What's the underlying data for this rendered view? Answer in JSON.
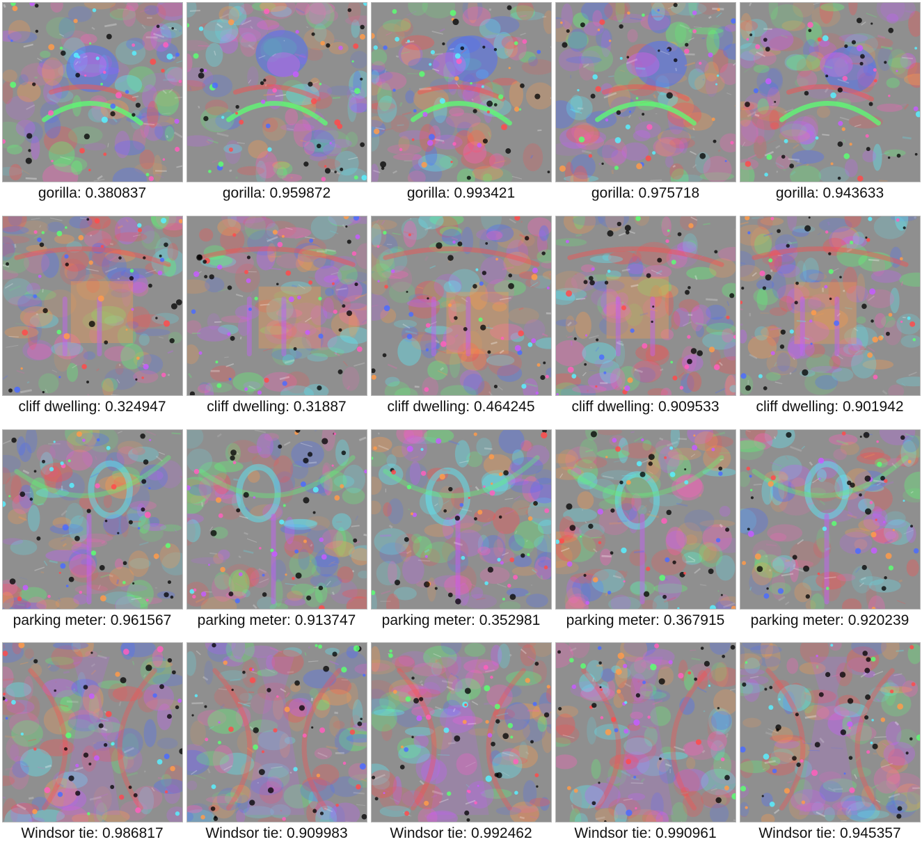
{
  "rows": [
    {
      "class_name": "gorilla",
      "captions": [
        "gorilla: 0.380837",
        "gorilla: 0.959872",
        "gorilla: 0.993421",
        "gorilla: 0.975718",
        "gorilla: 0.943633"
      ]
    },
    {
      "class_name": "cliff dwelling",
      "captions": [
        "cliff dwelling: 0.324947",
        "cliff dwelling: 0.31887",
        "cliff dwelling: 0.464245",
        "cliff dwelling: 0.909533",
        "cliff dwelling: 0.901942"
      ]
    },
    {
      "class_name": "parking meter",
      "captions": [
        "parking meter: 0.961567",
        "parking meter: 0.913747",
        "parking meter: 0.352981",
        "parking meter: 0.367915",
        "parking meter: 0.920239"
      ]
    },
    {
      "class_name": "Windsor tie",
      "captions": [
        "Windsor tie: 0.986817",
        "Windsor tie: 0.909983",
        "Windsor tie: 0.992462",
        "Windsor tie: 0.990961",
        "Windsor tie: 0.945357"
      ]
    }
  ],
  "colors": {
    "background": "#ffffff",
    "canvas_gray": "#8f8f8f",
    "green": "#5dff73",
    "magenta": "#c65cff",
    "red": "#ff4b4b",
    "orange": "#ff9b4a",
    "blue": "#4b6cff",
    "cyan": "#59f0ff",
    "pink": "#ff5fbd",
    "dark": "#000000",
    "white": "#ffffff"
  }
}
